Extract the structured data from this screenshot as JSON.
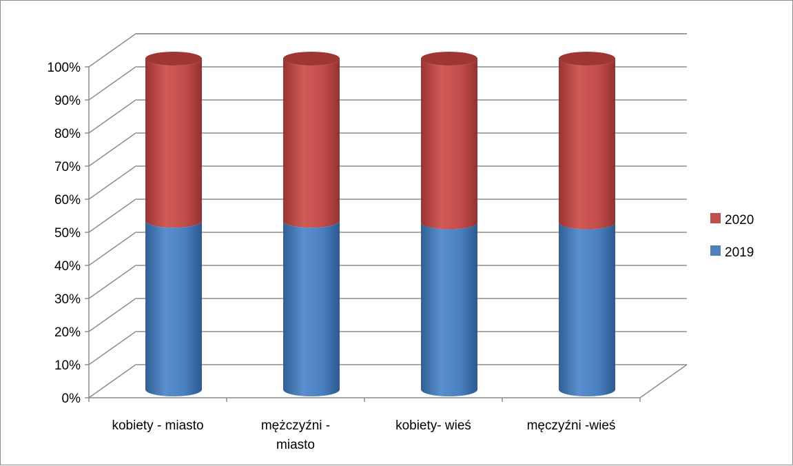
{
  "chart_data": {
    "type": "bar",
    "stacked": true,
    "percent_stacked": true,
    "style": "3d-cylinder",
    "categories": [
      [
        "kobiety - miasto"
      ],
      [
        "mężczyźni -",
        "miasto"
      ],
      [
        "kobiety- wieś"
      ],
      [
        "męczyźni -wieś"
      ]
    ],
    "series": [
      {
        "name": "2019",
        "values": [
          51,
          51,
          50.5,
          50.5
        ],
        "color": "#4f81bd"
      },
      {
        "name": "2020",
        "values": [
          49,
          49,
          49.5,
          49.5
        ],
        "color": "#c0504d"
      }
    ],
    "y_ticks": [
      "0%",
      "10%",
      "20%",
      "30%",
      "40%",
      "50%",
      "60%",
      "70%",
      "80%",
      "90%",
      "100%"
    ],
    "ylim": [
      0,
      100
    ],
    "grid": true,
    "legend": {
      "position": "right",
      "entries": [
        {
          "label": "2020",
          "color": "#c0504d"
        },
        {
          "label": "2019",
          "color": "#4f81bd"
        }
      ]
    }
  }
}
